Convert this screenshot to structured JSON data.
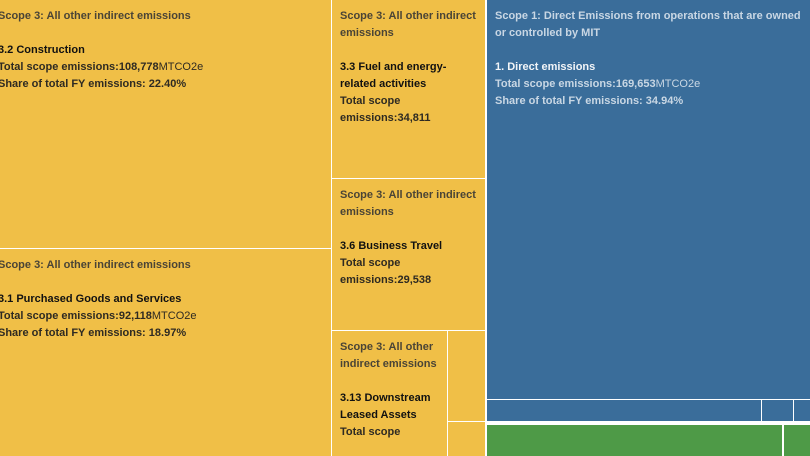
{
  "chart_data": {
    "type": "treemap",
    "tiles": [
      {
        "scope": "Scope 3: All other indirect emissions",
        "category": "3.2 Construction",
        "total_label": "Total scope emissions:",
        "total_value": "108,778",
        "unit": "MTCO2e",
        "share_label": "Share of total FY emissions:",
        "share_value": "22.40%",
        "value": 108778,
        "color": "#f0bf47"
      },
      {
        "scope": "Scope 3: All other indirect emissions",
        "category": "3.1 Purchased Goods and Services",
        "total_label": "Total scope emissions:",
        "total_value": "92,118",
        "unit": "MTCO2e",
        "share_label": "Share of total FY emissions:",
        "share_value": "18.97%",
        "value": 92118,
        "color": "#f0bf47"
      },
      {
        "scope": "Scope 3: All other indirect emissions",
        "category": "3.3 Fuel and energy-related activities",
        "total_label": "Total scope emissions:",
        "total_value": "34,811",
        "value": 34811,
        "color": "#f0bf47"
      },
      {
        "scope": "Scope 3: All other indirect emissions",
        "category": "3.6 Business Travel",
        "total_label": "Total scope emissions:",
        "total_value": "29,538",
        "value": 29538,
        "color": "#f0bf47"
      },
      {
        "scope": "Scope 3: All other indirect emissions",
        "category": "3.13 Downstream Leased Assets",
        "total_label": "Total scope",
        "color": "#f0bf47"
      },
      {
        "scope": "Scope 1: Direct Emissions from operations that are owned or controlled by MIT",
        "category": "1. Direct emissions",
        "total_label": "Total scope emissions:",
        "total_value": "169,653",
        "unit": "MTCO2e",
        "share_label": "Share of total FY emissions:",
        "share_value": "34.94%",
        "value": 169653,
        "color": "#3a6d9a"
      }
    ],
    "colors": {
      "scope3": "#f0bf47",
      "scope1": "#3a6d9a",
      "scope2": "#4e9a47"
    }
  }
}
